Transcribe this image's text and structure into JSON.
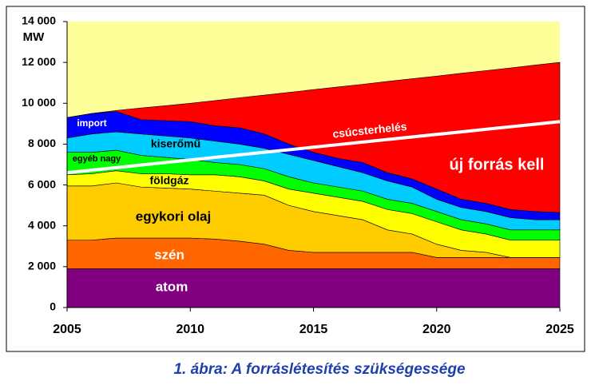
{
  "chart_data": {
    "type": "stacked-area",
    "y_label": "MW",
    "caption": "1. ábra: A forráslétesítés szükségessége",
    "x": [
      2005,
      2006,
      2007,
      2008,
      2009,
      2010,
      2011,
      2012,
      2013,
      2014,
      2015,
      2016,
      2017,
      2018,
      2019,
      2020,
      2021,
      2022,
      2023,
      2024,
      2025
    ],
    "xlim": [
      2005,
      2025
    ],
    "xticks": [
      2005,
      2010,
      2015,
      2020,
      2025
    ],
    "ylim": [
      0,
      14000
    ],
    "yticks": [
      0,
      {
        "value": 2000,
        "label": "2 000"
      },
      {
        "value": 4000,
        "label": "4 000"
      },
      {
        "value": 6000,
        "label": "6 000"
      },
      {
        "value": 8000,
        "label": "8 000"
      },
      {
        "value": 10000,
        "label": "10 000"
      },
      {
        "value": 12000,
        "label": "12 000"
      },
      {
        "value": 14000,
        "label": "14 000"
      }
    ],
    "series": [
      {
        "name": "atom",
        "color": "#800080",
        "values": [
          1900,
          1900,
          1900,
          1900,
          1900,
          1900,
          1900,
          1900,
          1900,
          1900,
          1900,
          1900,
          1900,
          1900,
          1900,
          1900,
          1900,
          1900,
          1900,
          1900,
          1900
        ]
      },
      {
        "name": "szén",
        "color": "#ff6600",
        "values": [
          1400,
          1400,
          1500,
          1500,
          1500,
          1500,
          1450,
          1350,
          1200,
          900,
          800,
          800,
          800,
          800,
          800,
          550,
          550,
          550,
          550,
          550,
          550
        ]
      },
      {
        "name": "egykori olaj",
        "color": "#ffcc00",
        "values": [
          2650,
          2650,
          2700,
          2500,
          2450,
          2400,
          2350,
          2350,
          2400,
          2200,
          2000,
          1800,
          1600,
          1100,
          900,
          650,
          350,
          250,
          0,
          0,
          0
        ]
      },
      {
        "name": "földgáz",
        "color": "#ffff00",
        "values": [
          550,
          600,
          600,
          650,
          700,
          700,
          800,
          800,
          700,
          800,
          900,
          900,
          900,
          1000,
          1000,
          1100,
          1000,
          900,
          850,
          850,
          850
        ]
      },
      {
        "name": "egyéb nagy",
        "color": "#00ff00",
        "values": [
          1100,
          1050,
          1000,
          900,
          800,
          750,
          600,
          600,
          600,
          600,
          500,
          500,
          500,
          500,
          500,
          500,
          500,
          500,
          500,
          500,
          500
        ]
      },
      {
        "name": "kiserőmű",
        "color": "#00ccff",
        "values": [
          700,
          900,
          900,
          1050,
          1050,
          1050,
          1050,
          1000,
          1000,
          1100,
          1100,
          1000,
          900,
          900,
          800,
          600,
          600,
          600,
          600,
          500,
          500
        ]
      },
      {
        "name": "import",
        "color": "#0000ff",
        "values": [
          1000,
          1000,
          1000,
          700,
          750,
          800,
          750,
          800,
          700,
          500,
          400,
          400,
          500,
          400,
          400,
          500,
          400,
          400,
          400,
          400,
          350
        ]
      },
      {
        "name": "új forrás kell",
        "color": "#ff0000",
        "values": [
          0,
          0,
          50,
          570,
          730,
          900,
          1230,
          1470,
          1900,
          2530,
          3070,
          3500,
          3830,
          4470,
          4900,
          5530,
          6170,
          6500,
          6930,
          7170,
          7350
        ]
      }
    ],
    "peak_line": {
      "name": "csúcsterhelés",
      "color": "#ffffff",
      "values": [
        6600,
        6725,
        6850,
        6975,
        7100,
        7225,
        7350,
        7475,
        7600,
        7725,
        7850,
        7975,
        8100,
        8225,
        8350,
        8475,
        8600,
        8725,
        8850,
        8975,
        9100
      ]
    }
  }
}
